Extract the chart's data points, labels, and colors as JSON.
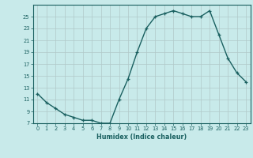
{
  "x": [
    0,
    1,
    2,
    3,
    4,
    5,
    6,
    7,
    8,
    9,
    10,
    11,
    12,
    13,
    14,
    15,
    16,
    17,
    18,
    19,
    20,
    21,
    22,
    23
  ],
  "y": [
    12,
    10.5,
    9.5,
    8.5,
    8,
    7.5,
    7.5,
    7,
    7,
    11,
    14.5,
    19,
    23,
    25,
    25.5,
    26,
    25.5,
    25,
    25,
    26,
    22,
    18,
    15.5,
    14
  ],
  "title": "",
  "xlabel": "Humidex (Indice chaleur)",
  "ylabel": "",
  "bg_color": "#c8eaea",
  "grid_color": "#b0c8c8",
  "line_color": "#1a6060",
  "marker_color": "#1a6060",
  "ylim": [
    7,
    27
  ],
  "xlim": [
    -0.5,
    23.5
  ],
  "yticks": [
    7,
    9,
    11,
    13,
    15,
    17,
    19,
    21,
    23,
    25
  ],
  "xticks": [
    0,
    1,
    2,
    3,
    4,
    5,
    6,
    7,
    8,
    9,
    10,
    11,
    12,
    13,
    14,
    15,
    16,
    17,
    18,
    19,
    20,
    21,
    22,
    23
  ]
}
